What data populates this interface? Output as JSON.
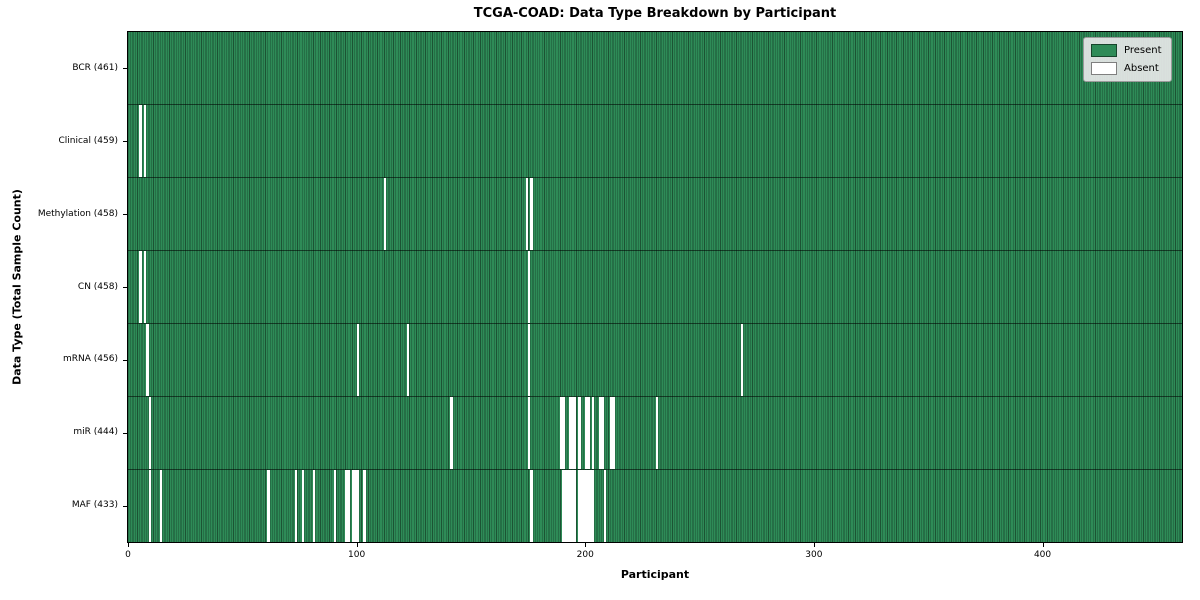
{
  "chart_data": {
    "type": "heatmap",
    "title": "TCGA-COAD: Data Type Breakdown by Participant",
    "xlabel": "Participant",
    "ylabel": "Data Type (Total Sample Count)",
    "xlim": [
      0,
      461
    ],
    "x_ticks": [
      0,
      100,
      200,
      300,
      400
    ],
    "total_participants": 461,
    "grid": false,
    "legend_position": "upper right",
    "legend": [
      {
        "label": "Present",
        "color": "#2e8b57"
      },
      {
        "label": "Absent",
        "color": "#ffffff"
      }
    ],
    "colors": {
      "present": "#2e8b57",
      "absent": "#ffffff",
      "cell_edge": "rgba(0,0,0,0.4)",
      "row_divider": "rgba(0,0,0,0.55)"
    },
    "rows": [
      {
        "name": "bcr",
        "label": "BCR (461)",
        "present_count": 461,
        "absent_participants": []
      },
      {
        "name": "clinical",
        "label": "Clinical (459)",
        "present_count": 459,
        "absent_participants": [
          5,
          7
        ]
      },
      {
        "name": "methylation",
        "label": "Methylation (458)",
        "present_count": 458,
        "absent_participants": [
          112,
          174,
          176
        ]
      },
      {
        "name": "cn",
        "label": "CN (458)",
        "present_count": 458,
        "absent_participants": [
          5,
          7,
          175
        ]
      },
      {
        "name": "mrna",
        "label": "mRNA (456)",
        "present_count": 456,
        "absent_participants": [
          8,
          100,
          122,
          175,
          268
        ]
      },
      {
        "name": "mir",
        "label": "miR (444)",
        "present_count": 444,
        "absent_participants": [
          9,
          141,
          175,
          189,
          190,
          193,
          194,
          195,
          197,
          200,
          201,
          203,
          206,
          207,
          211,
          212,
          231
        ]
      },
      {
        "name": "maf",
        "label": "MAF (433)",
        "present_count": 433,
        "absent_participants": [
          9,
          14,
          61,
          73,
          76,
          81,
          90,
          95,
          96,
          98,
          99,
          100,
          103,
          176,
          190,
          191,
          192,
          193,
          194,
          195,
          197,
          198,
          199,
          200,
          201,
          202,
          203,
          208
        ]
      }
    ]
  }
}
